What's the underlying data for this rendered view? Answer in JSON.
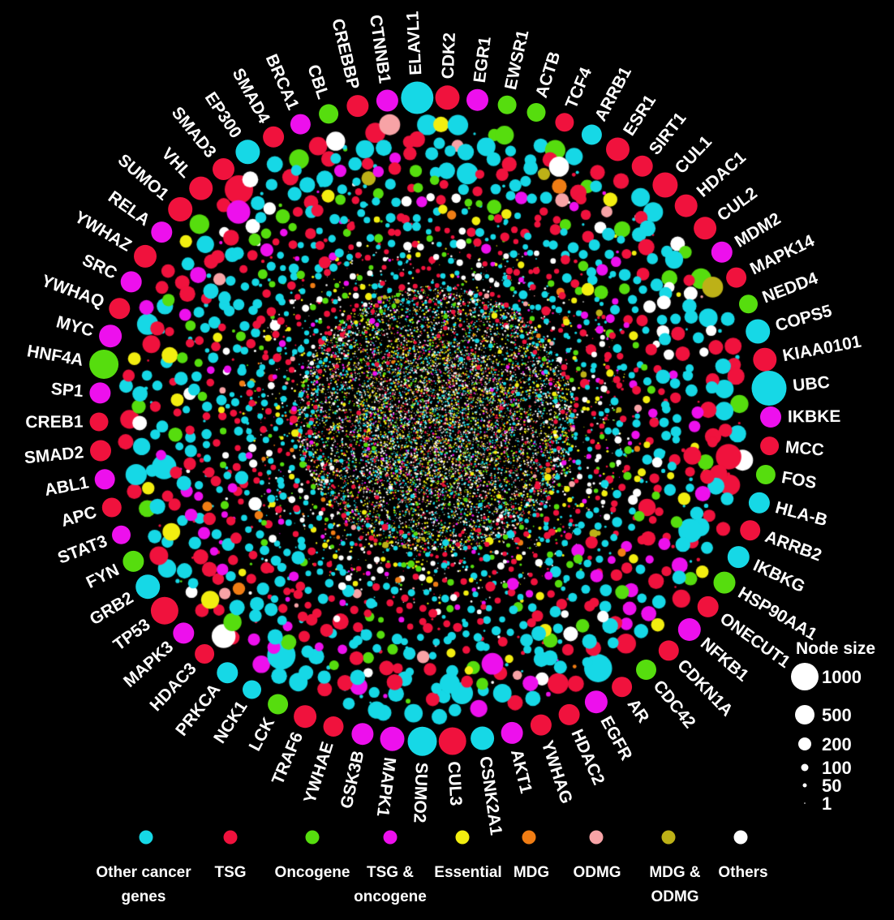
{
  "figure": {
    "background": "#000000",
    "description": "Radial gene interaction network; node size encodes degree, node color encodes gene category"
  },
  "colors": {
    "other_cancer": "#16d8e6",
    "tsg": "#f0123d",
    "oncogene": "#56dd0e",
    "tsg_oncogene": "#ed10ed",
    "essential": "#f2ee10",
    "mdg": "#f07d14",
    "odmg": "#f7a3a6",
    "mdg_odmg": "#bdb117",
    "others": "#ffffff"
  },
  "ring": {
    "genes": [
      {
        "name": "ELAVL1",
        "color": "other_cancer",
        "d": 40
      },
      {
        "name": "CDK2",
        "color": "tsg",
        "d": 30
      },
      {
        "name": "EGR1",
        "color": "tsg_oncogene",
        "d": 27
      },
      {
        "name": "EWSR1",
        "color": "oncogene",
        "d": 23
      },
      {
        "name": "ACTB",
        "color": "oncogene",
        "d": 23
      },
      {
        "name": "TCF4",
        "color": "tsg",
        "d": 23
      },
      {
        "name": "ARRB1",
        "color": "other_cancer",
        "d": 25
      },
      {
        "name": "ESR1",
        "color": "tsg",
        "d": 29
      },
      {
        "name": "SIRT1",
        "color": "tsg",
        "d": 26
      },
      {
        "name": "CUL1",
        "color": "tsg",
        "d": 31
      },
      {
        "name": "HDAC1",
        "color": "tsg",
        "d": 28
      },
      {
        "name": "CUL2",
        "color": "tsg",
        "d": 28
      },
      {
        "name": "MDM2",
        "color": "tsg_oncogene",
        "d": 26
      },
      {
        "name": "MAPK14",
        "color": "tsg",
        "d": 25
      },
      {
        "name": "NEDD4",
        "color": "oncogene",
        "d": 23
      },
      {
        "name": "COPS5",
        "color": "other_cancer",
        "d": 30
      },
      {
        "name": "KIAA0101",
        "color": "tsg",
        "d": 29
      },
      {
        "name": "UBC",
        "color": "other_cancer",
        "d": 43
      },
      {
        "name": "IKBKE",
        "color": "tsg_oncogene",
        "d": 26
      },
      {
        "name": "MCC",
        "color": "tsg",
        "d": 23
      },
      {
        "name": "FOS",
        "color": "oncogene",
        "d": 24
      },
      {
        "name": "HLA-B",
        "color": "other_cancer",
        "d": 26
      },
      {
        "name": "ARRB2",
        "color": "tsg",
        "d": 25
      },
      {
        "name": "IKBKG",
        "color": "other_cancer",
        "d": 27
      },
      {
        "name": "HSP90AA1",
        "color": "oncogene",
        "d": 27
      },
      {
        "name": "ONECUT1",
        "color": "tsg",
        "d": 26
      },
      {
        "name": "NFKB1",
        "color": "tsg_oncogene",
        "d": 28
      },
      {
        "name": "CDKN1A",
        "color": "tsg",
        "d": 25
      },
      {
        "name": "CDC42",
        "color": "oncogene",
        "d": 25
      },
      {
        "name": "AR",
        "color": "tsg",
        "d": 25
      },
      {
        "name": "EGFR",
        "color": "tsg_oncogene",
        "d": 28
      },
      {
        "name": "HDAC2",
        "color": "tsg",
        "d": 26
      },
      {
        "name": "YWHAG",
        "color": "tsg",
        "d": 26
      },
      {
        "name": "AKT1",
        "color": "tsg_oncogene",
        "d": 27
      },
      {
        "name": "CSNK2A1",
        "color": "other_cancer",
        "d": 29
      },
      {
        "name": "CUL3",
        "color": "tsg",
        "d": 34
      },
      {
        "name": "SUMO2",
        "color": "other_cancer",
        "d": 36
      },
      {
        "name": "MAPK1",
        "color": "tsg_oncogene",
        "d": 30
      },
      {
        "name": "GSK3B",
        "color": "tsg_oncogene",
        "d": 27
      },
      {
        "name": "YWHAE",
        "color": "tsg",
        "d": 25
      },
      {
        "name": "TRAF6",
        "color": "tsg",
        "d": 28
      },
      {
        "name": "LCK",
        "color": "oncogene",
        "d": 25
      },
      {
        "name": "NCK1",
        "color": "other_cancer",
        "d": 23
      },
      {
        "name": "PRKCA",
        "color": "other_cancer",
        "d": 26
      },
      {
        "name": "HDAC3",
        "color": "tsg",
        "d": 24
      },
      {
        "name": "MAPK3",
        "color": "tsg_oncogene",
        "d": 26
      },
      {
        "name": "TP53",
        "color": "tsg",
        "d": 34
      },
      {
        "name": "GRB2",
        "color": "other_cancer",
        "d": 30
      },
      {
        "name": "FYN",
        "color": "oncogene",
        "d": 26
      },
      {
        "name": "STAT3",
        "color": "tsg_oncogene",
        "d": 23
      },
      {
        "name": "APC",
        "color": "tsg",
        "d": 24
      },
      {
        "name": "ABL1",
        "color": "tsg_oncogene",
        "d": 25
      },
      {
        "name": "SMAD2",
        "color": "tsg",
        "d": 26
      },
      {
        "name": "CREB1",
        "color": "tsg",
        "d": 23
      },
      {
        "name": "SP1",
        "color": "tsg_oncogene",
        "d": 26
      },
      {
        "name": "HNF4A",
        "color": "oncogene",
        "d": 36
      },
      {
        "name": "MYC",
        "color": "tsg_oncogene",
        "d": 28
      },
      {
        "name": "YWHAQ",
        "color": "tsg",
        "d": 26
      },
      {
        "name": "SRC",
        "color": "tsg_oncogene",
        "d": 26
      },
      {
        "name": "YWHAZ",
        "color": "tsg",
        "d": 28
      },
      {
        "name": "RELA",
        "color": "tsg_oncogene",
        "d": 26
      },
      {
        "name": "SUMO1",
        "color": "tsg",
        "d": 30
      },
      {
        "name": "VHL",
        "color": "tsg",
        "d": 29
      },
      {
        "name": "SMAD3",
        "color": "tsg",
        "d": 27
      },
      {
        "name": "EP300",
        "color": "other_cancer",
        "d": 30
      },
      {
        "name": "SMAD4",
        "color": "tsg",
        "d": 26
      },
      {
        "name": "BRCA1",
        "color": "tsg_oncogene",
        "d": 25
      },
      {
        "name": "CBL",
        "color": "oncogene",
        "d": 24
      },
      {
        "name": "CREBBP",
        "color": "tsg",
        "d": 27
      },
      {
        "name": "CTNNB1",
        "color": "tsg_oncogene",
        "d": 27
      }
    ]
  },
  "node_size_legend": {
    "title": "Node size",
    "sizes": [
      {
        "label": "1000",
        "r": 17
      },
      {
        "label": "500",
        "r": 12
      },
      {
        "label": "200",
        "r": 8
      },
      {
        "label": "100",
        "r": 4.5
      },
      {
        "label": "50",
        "r": 2.5
      },
      {
        "label": "1",
        "r": 0.8
      }
    ]
  },
  "category_legend": {
    "items": [
      {
        "line1": "Other cancer",
        "line2": "genes",
        "key": "other_cancer"
      },
      {
        "line1": "TSG",
        "line2": "",
        "key": "tsg"
      },
      {
        "line1": "Oncogene",
        "line2": "",
        "key": "oncogene"
      },
      {
        "line1": "TSG &",
        "line2": "oncogene",
        "key": "tsg_oncogene"
      },
      {
        "line1": "Essential",
        "line2": "",
        "key": "essential"
      },
      {
        "line1": "MDG",
        "line2": "",
        "key": "mdg"
      },
      {
        "line1": "ODMG",
        "line2": "",
        "key": "odmg"
      },
      {
        "line1": "MDG &",
        "line2": "ODMG",
        "key": "mdg_odmg"
      },
      {
        "line1": "Others",
        "line2": "",
        "key": "others"
      }
    ]
  }
}
